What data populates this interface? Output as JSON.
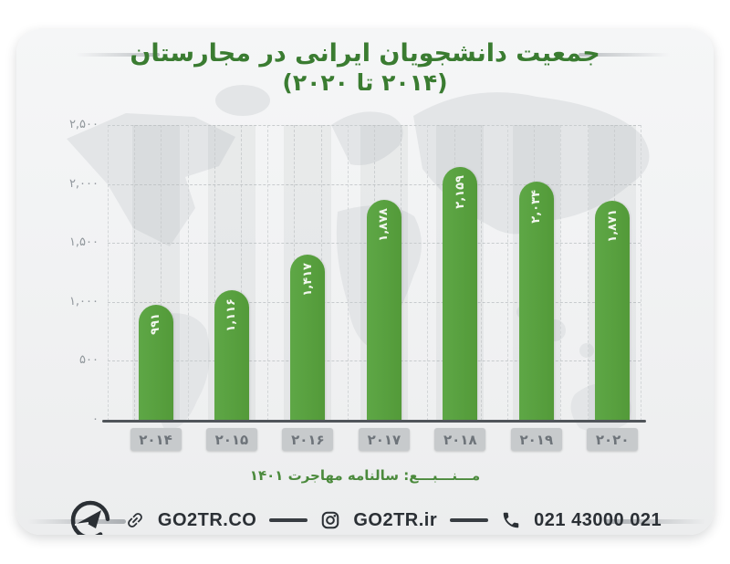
{
  "page": {
    "background": "#ffffff",
    "card_background": "#f1f2f3",
    "map_color": "#e3e5e7"
  },
  "title": {
    "line1": "جمعیت دانشجویان ایرانی در مجارستان",
    "line2": "(۲۰۱۴ تا ۲۰۲۰)",
    "color": "#3a7c31"
  },
  "chart_data": {
    "type": "bar",
    "title": "جمعیت دانشجویان ایرانی در مجارستان (۲۰۱۴ تا ۲۰۲۰)",
    "categories": [
      "۲۰۱۴",
      "۲۰۱۵",
      "۲۰۱۶",
      "۲۰۱۷",
      "۲۰۱۸",
      "۲۰۱۹",
      "۲۰۲۰"
    ],
    "values": [
      991,
      1116,
      1417,
      1878,
      2159,
      2034,
      1871
    ],
    "value_labels": [
      "۹۹۱",
      "۱,۱۱۶",
      "۱,۴۱۷",
      "۱,۸۷۸",
      "۲,۱۵۹",
      "۲,۰۳۴",
      "۱,۸۷۱"
    ],
    "y_ticks": [
      {
        "value": 0,
        "label": "۰"
      },
      {
        "value": 500,
        "label": "۵۰۰"
      },
      {
        "value": 1000,
        "label": "۱,۰۰۰"
      },
      {
        "value": 1500,
        "label": "۱,۵۰۰"
      },
      {
        "value": 2000,
        "label": "۲,۰۰۰"
      },
      {
        "value": 2500,
        "label": "۲,۵۰۰"
      }
    ],
    "ylim": [
      0,
      2500
    ],
    "bar_color": "#57a03c",
    "grid": true,
    "legend": false,
    "value_label_orientation": "vertical-bottom-to-top"
  },
  "source": {
    "text": "مـــنـــبـــع: سالنامه مهاجرت ۱۴۰۱",
    "color": "#4b8a3c"
  },
  "footer": {
    "logo": "go2tr-logo",
    "website": "GO2TR.CO",
    "instagram": "GO2TR.ir",
    "phone": "021 43000 021",
    "text_color": "#2b3035"
  }
}
